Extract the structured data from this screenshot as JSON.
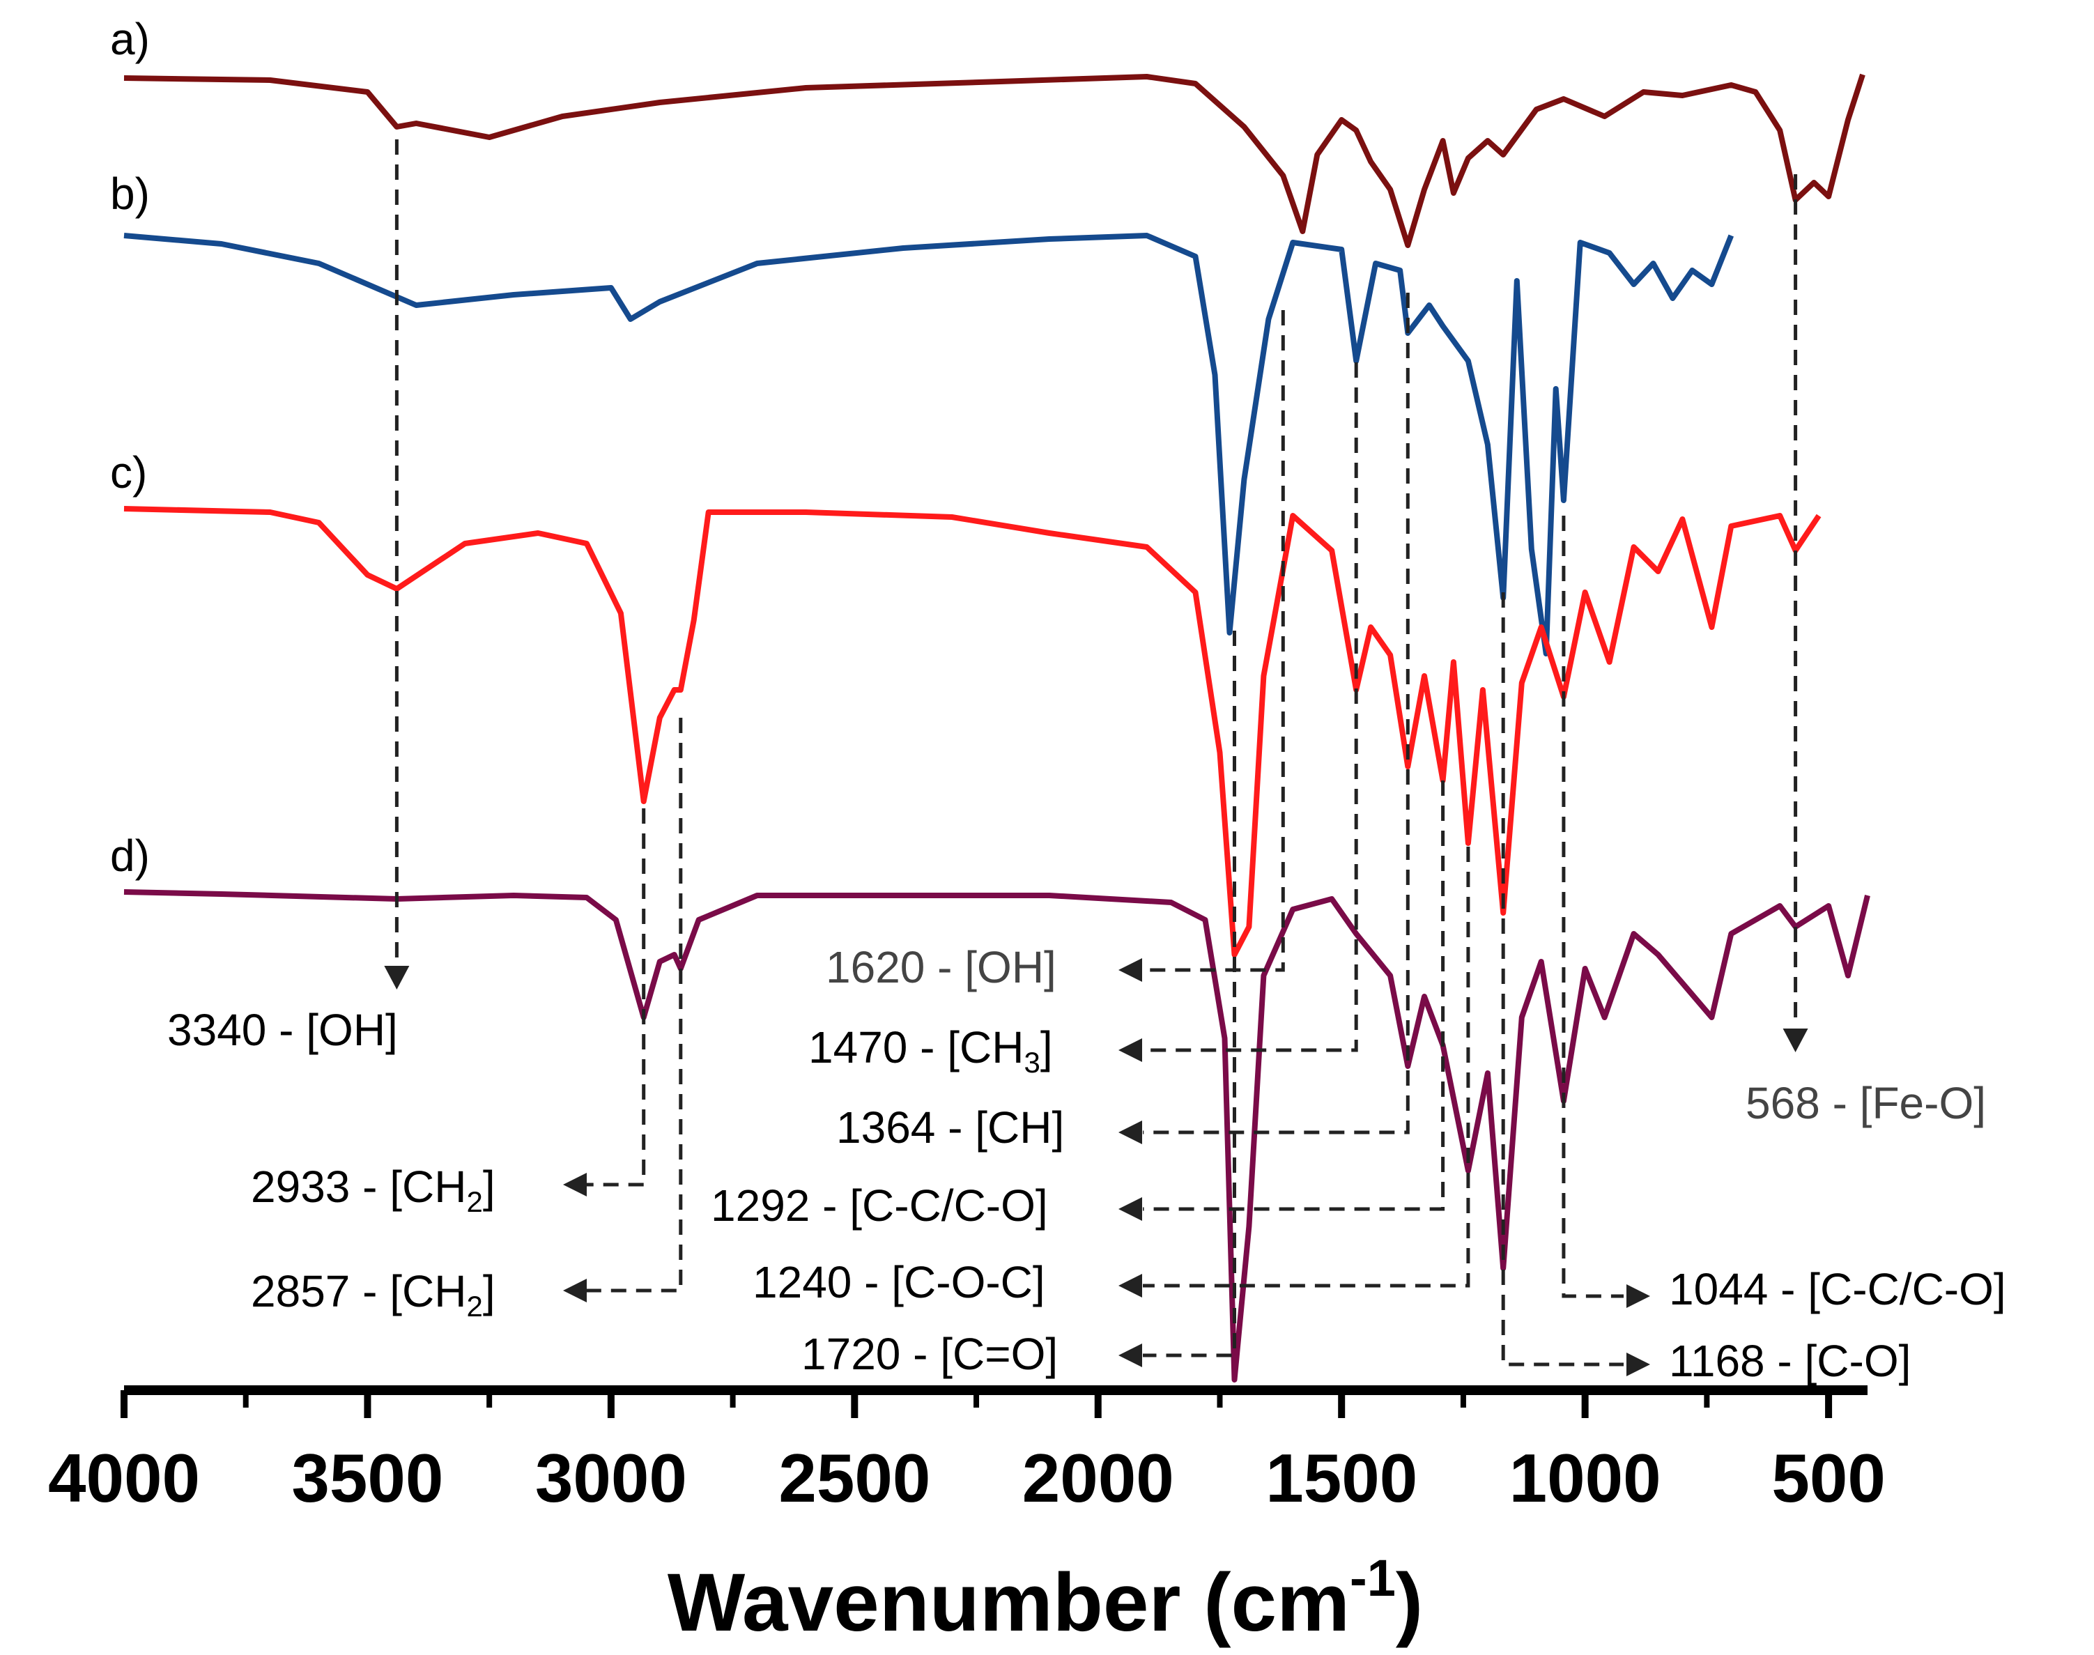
{
  "chart_data": {
    "type": "line",
    "title": "",
    "xlabel": "Wavenumber (cm",
    "xlabel_sup": "-1",
    "xlabel_close": ")",
    "ylabel": "",
    "xlim": [
      4000,
      420
    ],
    "x_ticks": [
      4000,
      3500,
      3000,
      2500,
      2000,
      1500,
      1000,
      500
    ],
    "x_tick_labels": [
      "4000",
      "3500",
      "3000",
      "2500",
      "2000",
      "1500",
      "1000",
      "500"
    ],
    "series": [
      {
        "name": "a)",
        "color": "#7b1010",
        "baseline": 0,
        "points": [
          [
            4000,
            0
          ],
          [
            3700,
            -3
          ],
          [
            3500,
            -20
          ],
          [
            3440,
            -70
          ],
          [
            3400,
            -65
          ],
          [
            3250,
            -85
          ],
          [
            3100,
            -55
          ],
          [
            2900,
            -35
          ],
          [
            2600,
            -14
          ],
          [
            2200,
            -5
          ],
          [
            1900,
            2
          ],
          [
            1800,
            -8
          ],
          [
            1700,
            -70
          ],
          [
            1620,
            -140
          ],
          [
            1580,
            -220
          ],
          [
            1550,
            -110
          ],
          [
            1500,
            -60
          ],
          [
            1470,
            -75
          ],
          [
            1440,
            -120
          ],
          [
            1400,
            -160
          ],
          [
            1364,
            -240
          ],
          [
            1330,
            -160
          ],
          [
            1292,
            -90
          ],
          [
            1270,
            -165
          ],
          [
            1240,
            -115
          ],
          [
            1200,
            -90
          ],
          [
            1168,
            -110
          ],
          [
            1100,
            -45
          ],
          [
            1044,
            -30
          ],
          [
            960,
            -55
          ],
          [
            880,
            -20
          ],
          [
            800,
            -25
          ],
          [
            700,
            -10
          ],
          [
            650,
            -20
          ],
          [
            600,
            -75
          ],
          [
            568,
            -175
          ],
          [
            530,
            -150
          ],
          [
            500,
            -170
          ],
          [
            460,
            -60
          ],
          [
            430,
            5
          ]
        ]
      },
      {
        "name": "b)",
        "color": "#154a8e",
        "baseline": 0,
        "points": [
          [
            4000,
            0
          ],
          [
            3800,
            -12
          ],
          [
            3600,
            -40
          ],
          [
            3400,
            -100
          ],
          [
            3200,
            -85
          ],
          [
            3000,
            -75
          ],
          [
            2960,
            -120
          ],
          [
            2900,
            -95
          ],
          [
            2700,
            -40
          ],
          [
            2400,
            -18
          ],
          [
            2100,
            -5
          ],
          [
            1900,
            0
          ],
          [
            1800,
            -30
          ],
          [
            1760,
            -200
          ],
          [
            1730,
            -570
          ],
          [
            1700,
            -350
          ],
          [
            1650,
            -120
          ],
          [
            1600,
            -10
          ],
          [
            1500,
            -20
          ],
          [
            1470,
            -180
          ],
          [
            1430,
            -40
          ],
          [
            1380,
            -50
          ],
          [
            1364,
            -140
          ],
          [
            1320,
            -100
          ],
          [
            1292,
            -130
          ],
          [
            1240,
            -180
          ],
          [
            1200,
            -300
          ],
          [
            1168,
            -520
          ],
          [
            1140,
            -65
          ],
          [
            1110,
            -450
          ],
          [
            1080,
            -600
          ],
          [
            1060,
            -220
          ],
          [
            1044,
            -380
          ],
          [
            1010,
            -10
          ],
          [
            950,
            -25
          ],
          [
            900,
            -70
          ],
          [
            860,
            -40
          ],
          [
            820,
            -90
          ],
          [
            780,
            -50
          ],
          [
            740,
            -70
          ],
          [
            700,
            0
          ]
        ]
      },
      {
        "name": "c)",
        "color": "#ff1b1b",
        "baseline": 0,
        "points": [
          [
            4000,
            0
          ],
          [
            3700,
            -5
          ],
          [
            3600,
            -20
          ],
          [
            3500,
            -95
          ],
          [
            3440,
            -115
          ],
          [
            3300,
            -50
          ],
          [
            3150,
            -35
          ],
          [
            3050,
            -50
          ],
          [
            2980,
            -150
          ],
          [
            2933,
            -420
          ],
          [
            2900,
            -300
          ],
          [
            2870,
            -260
          ],
          [
            2857,
            -260
          ],
          [
            2830,
            -160
          ],
          [
            2800,
            -5
          ],
          [
            2600,
            -5
          ],
          [
            2300,
            -12
          ],
          [
            2100,
            -35
          ],
          [
            1900,
            -55
          ],
          [
            1800,
            -120
          ],
          [
            1750,
            -350
          ],
          [
            1720,
            -640
          ],
          [
            1690,
            -600
          ],
          [
            1660,
            -240
          ],
          [
            1600,
            -10
          ],
          [
            1520,
            -60
          ],
          [
            1470,
            -260
          ],
          [
            1440,
            -170
          ],
          [
            1400,
            -210
          ],
          [
            1364,
            -370
          ],
          [
            1330,
            -240
          ],
          [
            1292,
            -390
          ],
          [
            1270,
            -220
          ],
          [
            1240,
            -480
          ],
          [
            1210,
            -260
          ],
          [
            1168,
            -580
          ],
          [
            1130,
            -250
          ],
          [
            1090,
            -170
          ],
          [
            1044,
            -270
          ],
          [
            1000,
            -120
          ],
          [
            950,
            -220
          ],
          [
            900,
            -55
          ],
          [
            850,
            -90
          ],
          [
            800,
            -15
          ],
          [
            740,
            -170
          ],
          [
            700,
            -25
          ],
          [
            600,
            -10
          ],
          [
            568,
            -60
          ],
          [
            520,
            -10
          ]
        ]
      },
      {
        "name": "d)",
        "color": "#7a0b48",
        "baseline": 0,
        "points": [
          [
            4000,
            0
          ],
          [
            3800,
            -3
          ],
          [
            3440,
            -10
          ],
          [
            3200,
            -5
          ],
          [
            3050,
            -8
          ],
          [
            2990,
            -40
          ],
          [
            2933,
            -180
          ],
          [
            2900,
            -100
          ],
          [
            2870,
            -90
          ],
          [
            2857,
            -110
          ],
          [
            2820,
            -40
          ],
          [
            2700,
            -5
          ],
          [
            2400,
            -5
          ],
          [
            2100,
            -5
          ],
          [
            1850,
            -15
          ],
          [
            1780,
            -40
          ],
          [
            1740,
            -210
          ],
          [
            1720,
            -700
          ],
          [
            1690,
            -480
          ],
          [
            1660,
            -120
          ],
          [
            1600,
            -25
          ],
          [
            1520,
            -10
          ],
          [
            1470,
            -60
          ],
          [
            1400,
            -120
          ],
          [
            1364,
            -250
          ],
          [
            1330,
            -150
          ],
          [
            1292,
            -220
          ],
          [
            1240,
            -400
          ],
          [
            1200,
            -260
          ],
          [
            1168,
            -540
          ],
          [
            1130,
            -180
          ],
          [
            1090,
            -100
          ],
          [
            1044,
            -300
          ],
          [
            1000,
            -110
          ],
          [
            960,
            -180
          ],
          [
            900,
            -60
          ],
          [
            850,
            -90
          ],
          [
            740,
            -180
          ],
          [
            700,
            -60
          ],
          [
            600,
            -20
          ],
          [
            568,
            -50
          ],
          [
            500,
            -20
          ],
          [
            460,
            -120
          ],
          [
            420,
            -5
          ]
        ]
      }
    ],
    "annotations": [
      {
        "label": "3340 - [OH]",
        "x": 3340
      },
      {
        "label": "2933 - [CH",
        "sub": "2",
        "close": "]",
        "x": 2933
      },
      {
        "label": "2857 - [CH",
        "sub": "2",
        "close": "]",
        "x": 2857
      },
      {
        "label": "1620 - [OH]",
        "x": 1620
      },
      {
        "label": "1470 - [CH",
        "sub": "3",
        "close": "]",
        "x": 1470
      },
      {
        "label": "1364 - [CH]",
        "x": 1364
      },
      {
        "label": "1292 - [C-C/C-O]",
        "x": 1292
      },
      {
        "label": "1240 - [C-O-C]",
        "x": 1240
      },
      {
        "label": "1720 - [C=O]",
        "x": 1720
      },
      {
        "label": "1044 - [C-C/C-O]",
        "x": 1044
      },
      {
        "label": "1168 - [C-O]",
        "x": 1168
      },
      {
        "label": "568 - [Fe-O]",
        "x": 568
      }
    ]
  }
}
